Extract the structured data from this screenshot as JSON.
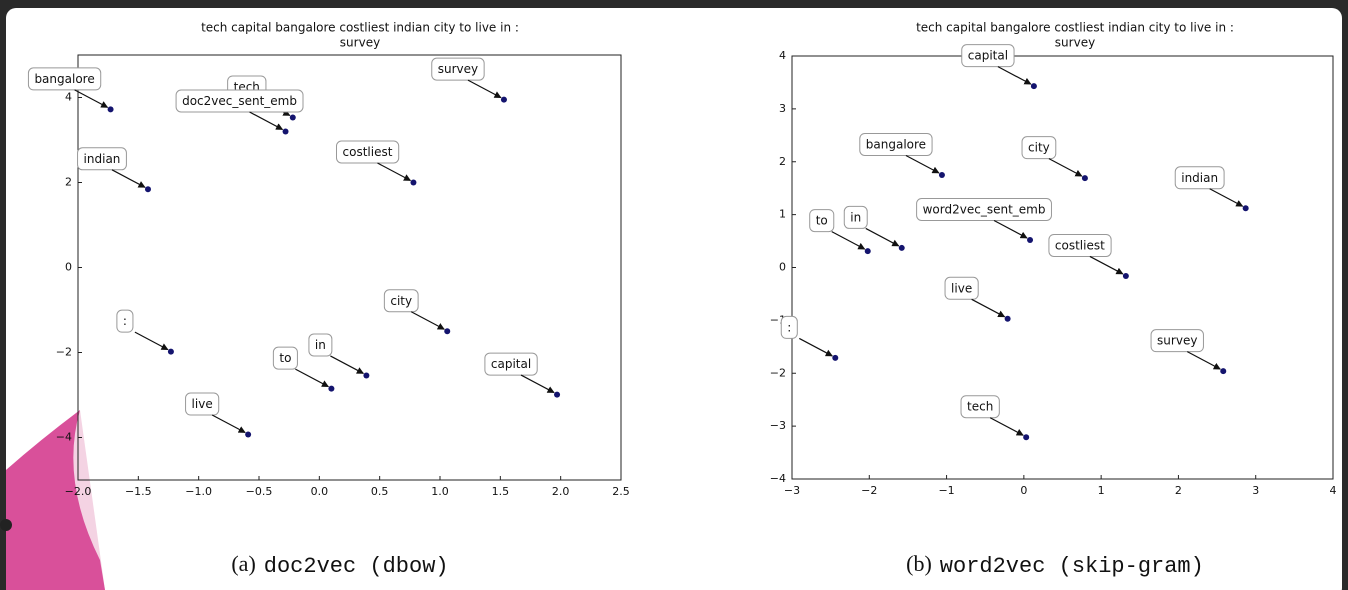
{
  "chart_data": [
    {
      "type": "scatter",
      "title": [
        "tech capital bangalore costliest indian city to live in :",
        "survey"
      ],
      "caption_tag": "(a)",
      "caption_method": "doc2vec (dbow)",
      "labels": [
        "bangalore",
        "tech",
        "doc2vec_sent_emb",
        "survey",
        "indian",
        "costliest",
        "city",
        ":",
        "to",
        "in",
        "capital",
        "live"
      ],
      "x": [
        -1.73,
        -0.22,
        -0.28,
        1.53,
        -1.42,
        0.78,
        1.06,
        -1.23,
        0.1,
        0.39,
        1.97,
        -0.59
      ],
      "y": [
        3.72,
        3.53,
        3.2,
        3.95,
        1.84,
        2.0,
        -1.5,
        -1.98,
        -2.85,
        -2.54,
        -2.99,
        -3.93
      ],
      "color": "#14146e",
      "xlim": [
        -2.0,
        2.5
      ],
      "xticks": [
        {
          "value": -2.0,
          "label": "−2.0"
        },
        {
          "value": -1.5,
          "label": "−1.5"
        },
        {
          "value": -1.0,
          "label": "−1.0"
        },
        {
          "value": -0.5,
          "label": "−0.5"
        },
        {
          "value": 0.0,
          "label": "0.0"
        },
        0.5,
        {
          "value": 1.0,
          "label": "1.0"
        },
        1.5,
        {
          "value": 2.0,
          "label": "2.0"
        },
        2.5
      ],
      "ylim": [
        -5,
        5
      ],
      "yticks": [
        {
          "value": -4,
          "label": "−4"
        },
        {
          "value": -2,
          "label": "−2"
        },
        0,
        2,
        4
      ]
    },
    {
      "type": "scatter",
      "title": [
        "tech capital bangalore costliest indian city to live in :",
        "survey"
      ],
      "caption_tag": "(b)",
      "caption_method": "word2vec (skip-gram)",
      "labels": [
        "capital",
        "bangalore",
        "city",
        "indian",
        "word2vec_sent_emb",
        "to",
        "in",
        "costliest",
        "live",
        ":",
        "survey",
        "tech"
      ],
      "x": [
        0.13,
        -1.06,
        0.79,
        2.87,
        0.08,
        -2.02,
        -1.58,
        1.32,
        -0.21,
        -2.44,
        2.58,
        0.03
      ],
      "y": [
        3.43,
        1.75,
        1.69,
        1.12,
        0.52,
        0.31,
        0.37,
        -0.16,
        -0.97,
        -1.71,
        -1.96,
        -3.21
      ],
      "color": "#14146e",
      "xlim": [
        -3,
        4
      ],
      "xticks": [
        {
          "value": -3,
          "label": "−3"
        },
        {
          "value": -2,
          "label": "−2"
        },
        {
          "value": -1,
          "label": "−1"
        },
        0,
        1,
        2,
        3,
        4
      ],
      "ylim": [
        -4,
        4
      ],
      "yticks": [
        {
          "value": -4,
          "label": "−4"
        },
        {
          "value": -3,
          "label": "−3"
        },
        {
          "value": -2,
          "label": "−2"
        },
        {
          "value": -1,
          "label": "−1"
        },
        0,
        1,
        2,
        3,
        4
      ]
    }
  ]
}
